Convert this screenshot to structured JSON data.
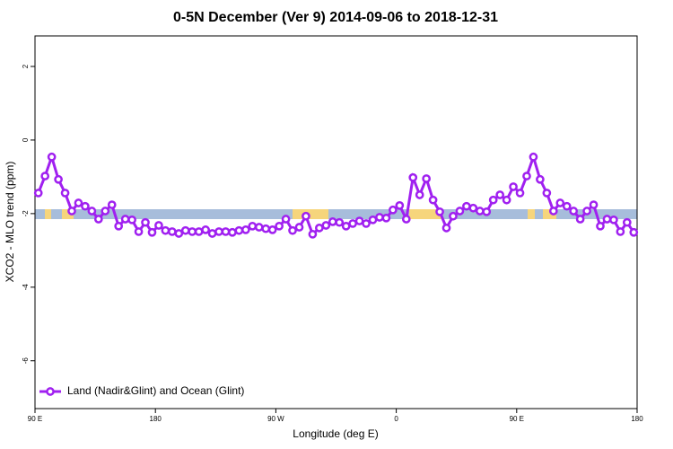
{
  "chart_data": {
    "type": "line",
    "title": "0-5N December (Ver 9)   2014-09-06 to 2018-12-31",
    "x_label": "Longitude (deg E)",
    "y_label": "XCO2 - MLO trend (ppm)",
    "xlim": [
      90,
      540
    ],
    "xticks": [
      {
        "value": 90,
        "label": "90 E"
      },
      180,
      {
        "value": 270,
        "label": "90 W"
      },
      {
        "value": 360,
        "label": "0"
      },
      {
        "value": 450,
        "label": "90 E"
      },
      {
        "value": 540,
        "label": "180"
      }
    ],
    "ylim": [
      -7.3,
      2.83
    ],
    "yticks": [
      2,
      0,
      -2,
      -4,
      -6
    ],
    "legend": "bottom-left",
    "x": [
      92.5,
      97.5,
      102.5,
      107.5,
      112.5,
      117.5,
      122.5,
      127.5,
      132.5,
      137.5,
      142.5,
      147.5,
      152.5,
      157.5,
      162.5,
      167.5,
      172.5,
      177.5,
      182.5,
      187.5,
      192.5,
      197.5,
      202.5,
      207.5,
      212.5,
      217.5,
      222.5,
      227.5,
      232.5,
      237.5,
      242.5,
      247.5,
      252.5,
      257.5,
      262.5,
      267.5,
      272.5,
      277.5,
      282.5,
      287.5,
      292.5,
      297.5,
      302.5,
      307.5,
      312.5,
      317.5,
      322.5,
      327.5,
      332.5,
      337.5,
      342.5,
      347.5,
      352.5,
      357.5,
      362.5,
      367.5,
      372.5,
      377.5,
      382.5,
      387.5,
      392.5,
      397.5,
      402.5,
      407.5,
      412.5,
      417.5,
      422.5,
      427.5,
      432.5,
      437.5,
      442.5,
      447.5,
      452.5,
      457.5,
      462.5,
      467.5,
      472.5,
      477.5,
      482.5,
      487.5,
      492.5,
      497.5,
      502.5,
      507.5,
      512.5,
      517.5,
      522.5,
      527.5,
      532.5,
      537.5
    ],
    "series": [
      {
        "name": "Land (Nadir&Glint) and Ocean (Glint)",
        "color": "#a020f0",
        "values": [
          -1.44,
          -0.98,
          -0.46,
          -1.07,
          -1.44,
          -1.93,
          -1.71,
          -1.8,
          -1.93,
          -2.15,
          -1.93,
          -1.76,
          -2.34,
          -2.15,
          -2.17,
          -2.49,
          -2.24,
          -2.51,
          -2.32,
          -2.46,
          -2.49,
          -2.54,
          -2.46,
          -2.49,
          -2.49,
          -2.44,
          -2.54,
          -2.49,
          -2.49,
          -2.51,
          -2.46,
          -2.44,
          -2.34,
          -2.37,
          -2.41,
          -2.44,
          -2.34,
          -2.15,
          -2.46,
          -2.37,
          -2.07,
          -2.56,
          -2.39,
          -2.32,
          -2.22,
          -2.24,
          -2.34,
          -2.27,
          -2.2,
          -2.27,
          -2.17,
          -2.1,
          -2.12,
          -1.9,
          -1.78,
          -2.15,
          -1.02,
          -1.49,
          -1.05,
          -1.63,
          -1.95,
          -2.39,
          -2.07,
          -1.93,
          -1.8,
          -1.85,
          -1.93,
          -1.95,
          -1.63,
          -1.49,
          -1.63,
          -1.27,
          -1.44,
          -0.98,
          -0.46,
          -1.07,
          -1.44,
          -1.93,
          -1.71,
          -1.8,
          -1.93,
          -2.15,
          -1.93,
          -1.76,
          -2.34,
          -2.15,
          -2.17,
          -2.49,
          -2.24,
          -2.51
        ]
      }
    ]
  }
}
